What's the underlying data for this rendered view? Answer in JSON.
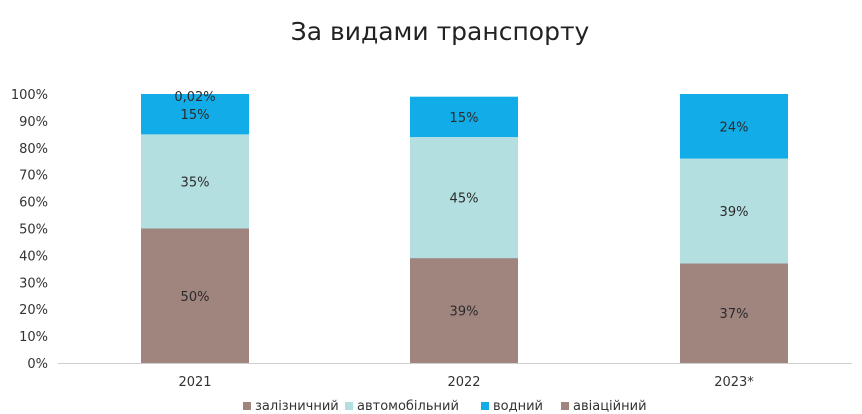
{
  "chart_data": {
    "type": "bar",
    "stacked": true,
    "title": "За видами транспорту",
    "xlabel": "",
    "ylabel": "",
    "ylim": [
      0,
      100
    ],
    "yticks": [
      "0%",
      "10%",
      "20%",
      "30%",
      "40%",
      "50%",
      "60%",
      "70%",
      "80%",
      "90%",
      "100%"
    ],
    "categories": [
      "2021",
      "2022",
      "2023*"
    ],
    "series": [
      {
        "name": "залізничний",
        "color": "#a0857f",
        "values": [
          50,
          39,
          37
        ],
        "labels": [
          "50%",
          "39%",
          "37%"
        ]
      },
      {
        "name": "автомобільний",
        "color": "#b4dfe0",
        "values": [
          35,
          45,
          39
        ],
        "labels": [
          "35%",
          "45%",
          "39%"
        ]
      },
      {
        "name": "водний",
        "color": "#12ade8",
        "values": [
          15,
          15,
          24
        ],
        "labels": [
          "15%",
          "15%",
          "24%"
        ]
      },
      {
        "name": "авіаційний",
        "color": "#a0857f",
        "values": [
          0.02,
          0,
          0
        ],
        "labels": [
          "0,02%",
          "",
          ""
        ]
      }
    ],
    "legend_position": "bottom",
    "grid": false
  }
}
